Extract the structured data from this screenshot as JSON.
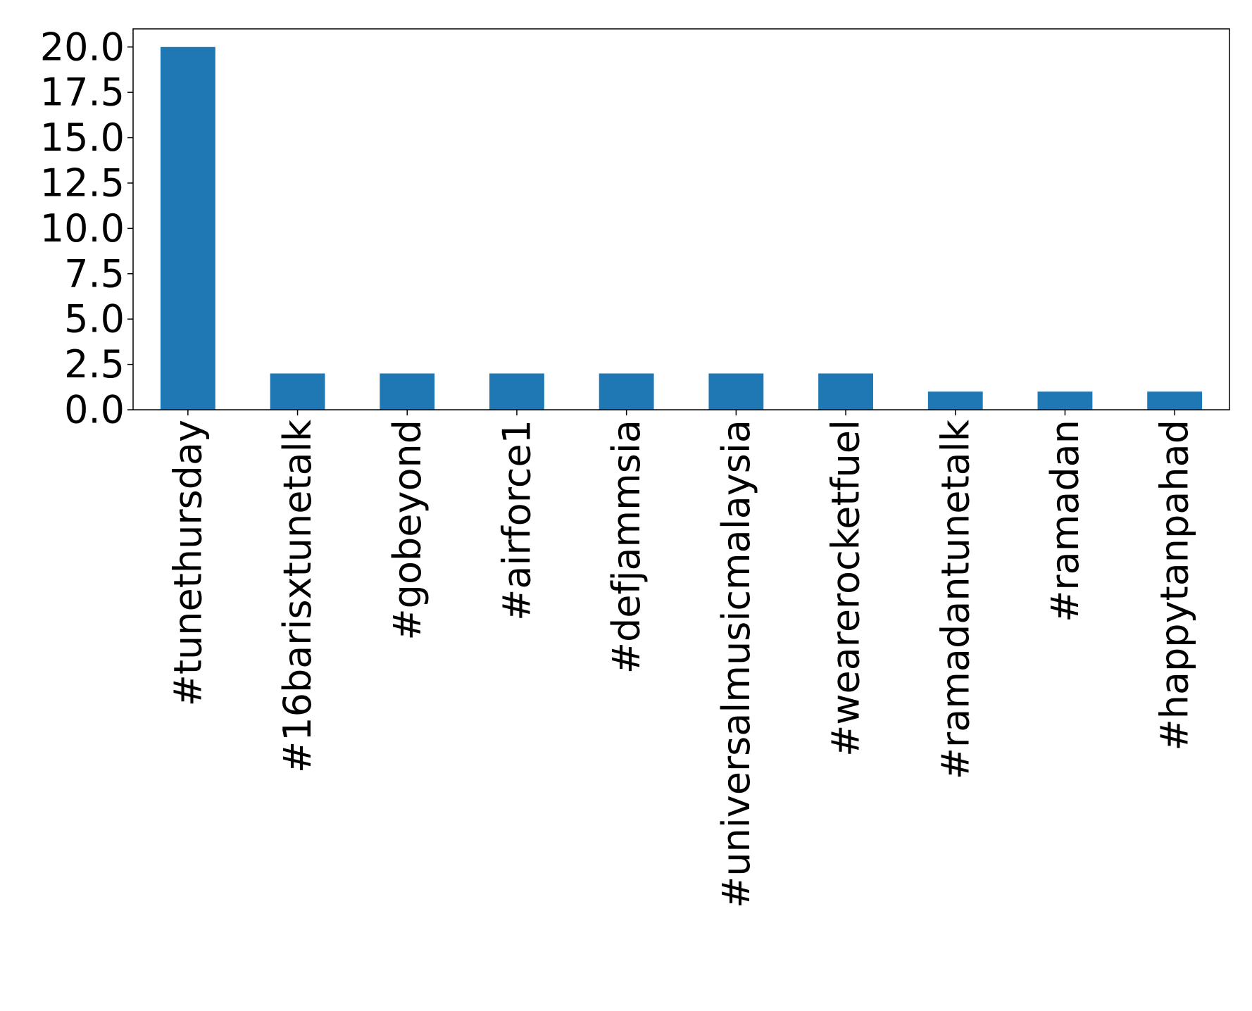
{
  "chart_data": {
    "type": "bar",
    "categories": [
      "#tunethursday",
      "#16barisxtunetalk",
      "#gobeyond",
      "#airforce1",
      "#defjammsia",
      "#universalmusicmalaysia",
      "#wearerocketfuel",
      "#ramadantunetalk",
      "#ramadan",
      "#happytanpahad"
    ],
    "values": [
      20,
      2,
      2,
      2,
      2,
      2,
      2,
      1,
      1,
      1
    ],
    "yticks": [
      "0.0",
      "2.5",
      "5.0",
      "7.5",
      "10.0",
      "12.5",
      "15.0",
      "17.5",
      "20.0"
    ],
    "ylim": [
      0,
      21
    ],
    "title": "",
    "xlabel": "",
    "ylabel": "",
    "bar_color": "#1f77b4",
    "grid": false,
    "legend": "none"
  }
}
